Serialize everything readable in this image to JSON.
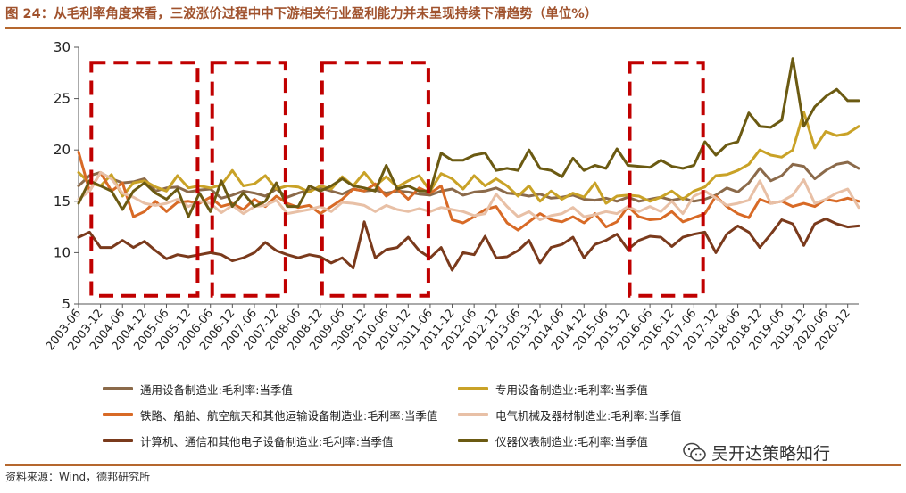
{
  "header": {
    "title": "图 24：从毛利率角度来看，三波涨价过程中中下游相关行业盈利能力并未呈现持续下滑趋势（单位%）"
  },
  "footer": {
    "source": "资料来源：Wind，德邦研究所",
    "watermark": "吴开达策略知行"
  },
  "chart_data": {
    "type": "line",
    "title": "",
    "xlabel": "",
    "ylabel": "",
    "ylim": [
      5,
      30
    ],
    "yticks": [
      5,
      10,
      15,
      20,
      25,
      30
    ],
    "grid": false,
    "legend_position": "bottom",
    "x": [
      "2003-06",
      "2003-09",
      "2003-12",
      "2004-03",
      "2004-06",
      "2004-09",
      "2004-12",
      "2005-03",
      "2005-06",
      "2005-09",
      "2005-12",
      "2006-03",
      "2006-06",
      "2006-09",
      "2006-12",
      "2007-03",
      "2007-06",
      "2007-09",
      "2007-12",
      "2008-03",
      "2008-06",
      "2008-09",
      "2008-12",
      "2009-03",
      "2009-06",
      "2009-09",
      "2009-12",
      "2010-03",
      "2010-06",
      "2010-09",
      "2010-12",
      "2011-03",
      "2011-06",
      "2011-09",
      "2011-12",
      "2012-03",
      "2012-06",
      "2012-09",
      "2012-12",
      "2013-03",
      "2013-06",
      "2013-09",
      "2013-12",
      "2014-03",
      "2014-06",
      "2014-09",
      "2014-12",
      "2015-03",
      "2015-06",
      "2015-09",
      "2015-12",
      "2016-03",
      "2016-06",
      "2016-09",
      "2016-12",
      "2017-03",
      "2017-06",
      "2017-09",
      "2017-12",
      "2018-03",
      "2018-06",
      "2018-09",
      "2018-12",
      "2019-03",
      "2019-06",
      "2019-09",
      "2019-12",
      "2020-03",
      "2020-06",
      "2020-09",
      "2020-12",
      "2021-03"
    ],
    "xticks": [
      "2003-06",
      "2003-12",
      "2004-06",
      "2004-12",
      "2005-06",
      "2005-12",
      "2006-06",
      "2006-12",
      "2007-06",
      "2007-12",
      "2008-06",
      "2008-12",
      "2009-06",
      "2009-12",
      "2010-06",
      "2010-12",
      "2011-06",
      "2011-12",
      "2012-06",
      "2012-12",
      "2013-06",
      "2013-12",
      "2014-06",
      "2014-12",
      "2015-06",
      "2015-12",
      "2016-06",
      "2016-12",
      "2017-06",
      "2017-12",
      "2018-06",
      "2018-12",
      "2019-06",
      "2019-12",
      "2020-06",
      "2020-12"
    ],
    "series": [
      {
        "name": "通用设备制造业:毛利率:当季值",
        "color": "#8b6a4a",
        "values": [
          16.5,
          17.5,
          17.8,
          17.2,
          16.8,
          16.9,
          17.2,
          16.0,
          16.3,
          16.4,
          15.9,
          16.1,
          16.2,
          15.3,
          15.6,
          16.0,
          15.8,
          15.5,
          16.2,
          15.4,
          15.8,
          16.1,
          16.3,
          16.0,
          15.7,
          16.2,
          16.0,
          16.1,
          15.8,
          16.0,
          15.9,
          15.7,
          15.6,
          16.0,
          16.2,
          15.6,
          15.9,
          16.0,
          16.3,
          15.8,
          15.7,
          15.5,
          15.7,
          15.3,
          15.4,
          15.6,
          15.2,
          15.1,
          15.3,
          15.0,
          15.4,
          15.0,
          15.2,
          15.4,
          15.1,
          15.3,
          15.0,
          15.2,
          15.6,
          16.3,
          15.9,
          16.8,
          18.2,
          17.0,
          17.5,
          18.6,
          18.4,
          17.2,
          18.0,
          18.6,
          18.8,
          18.2
        ]
      },
      {
        "name": "专用设备制造业:毛利率:当季值",
        "color": "#c9a227",
        "values": [
          17.8,
          16.8,
          16.5,
          17.6,
          15.5,
          16.8,
          17.0,
          16.4,
          16.0,
          17.5,
          16.3,
          16.5,
          16.3,
          16.6,
          18.0,
          16.5,
          16.7,
          17.5,
          16.2,
          16.5,
          16.4,
          15.9,
          16.5,
          16.2,
          17.4,
          16.5,
          17.8,
          16.5,
          17.4,
          16.4,
          17.0,
          17.5,
          16.0,
          17.7,
          17.2,
          16.2,
          17.5,
          16.5,
          17.2,
          16.5,
          15.5,
          16.5,
          15.0,
          16.0,
          15.2,
          15.8,
          15.4,
          16.8,
          14.8,
          15.5,
          15.6,
          15.5,
          15.0,
          15.4,
          16.0,
          15.2,
          16.0,
          16.4,
          17.5,
          17.6,
          18.0,
          18.6,
          20.0,
          19.5,
          19.3,
          20.0,
          23.7,
          20.2,
          21.8,
          21.4,
          21.6,
          22.3
        ]
      },
      {
        "name": "铁路、船舶、航空航天和其他运输设备制造业:毛利率:当季值",
        "color": "#d86a26",
        "values": [
          19.8,
          16.0,
          17.8,
          16.0,
          16.8,
          13.5,
          14.0,
          15.0,
          14.0,
          14.9,
          15.0,
          14.8,
          15.4,
          14.5,
          14.8,
          14.2,
          15.2,
          14.5,
          15.5,
          14.8,
          14.4,
          14.6,
          13.8,
          14.5,
          15.2,
          16.2,
          16.0,
          16.7,
          15.5,
          16.2,
          15.2,
          16.3,
          15.8,
          16.5,
          13.2,
          12.9,
          13.5,
          14.2,
          14.5,
          12.9,
          12.2,
          13.0,
          13.8,
          13.2,
          13.0,
          13.5,
          12.9,
          13.8,
          12.5,
          13.0,
          14.5,
          13.5,
          13.2,
          13.3,
          14.0,
          13.0,
          13.4,
          13.8,
          15.5,
          14.5,
          13.8,
          13.4,
          15.2,
          14.8,
          15.0,
          14.5,
          14.8,
          14.5,
          15.2,
          15.0,
          15.3,
          15.0
        ]
      },
      {
        "name": "电气机械及器材制造业:毛利率:当季值",
        "color": "#e8c0a6",
        "values": [
          15.2,
          16.0,
          17.8,
          17.2,
          15.8,
          15.4,
          14.8,
          14.6,
          14.8,
          15.2,
          14.5,
          15.0,
          14.8,
          13.9,
          14.6,
          13.8,
          14.5,
          14.6,
          15.1,
          13.8,
          14.0,
          14.2,
          14.5,
          14.0,
          14.9,
          14.8,
          14.6,
          14.0,
          14.6,
          14.2,
          14.0,
          14.3,
          14.0,
          14.4,
          14.2,
          14.0,
          13.6,
          13.8,
          15.7,
          14.5,
          13.5,
          14.0,
          13.2,
          13.6,
          13.8,
          14.4,
          13.5,
          13.7,
          14.0,
          13.8,
          14.5,
          14.0,
          14.5,
          14.0,
          15.0,
          13.8,
          15.5,
          16.0,
          15.3,
          14.6,
          14.8,
          15.1,
          17.0,
          14.8,
          15.0,
          15.6,
          17.1,
          14.8,
          15.2,
          15.8,
          16.2,
          14.4
        ]
      },
      {
        "name": "计算机、通信和其他电子设备制造业:毛利率:当季值",
        "color": "#7a3a1c",
        "values": [
          11.5,
          12.0,
          10.5,
          10.5,
          11.2,
          10.5,
          11.1,
          10.2,
          9.4,
          9.8,
          9.6,
          9.8,
          10.0,
          9.8,
          9.2,
          9.5,
          10.0,
          11.0,
          10.2,
          9.8,
          9.5,
          9.8,
          9.6,
          9.0,
          9.5,
          8.5,
          13.0,
          9.5,
          10.3,
          10.5,
          11.5,
          10.2,
          9.5,
          10.5,
          8.3,
          10.0,
          9.8,
          11.6,
          9.5,
          9.6,
          10.2,
          11.2,
          9.0,
          10.5,
          10.8,
          11.5,
          9.5,
          10.8,
          11.2,
          11.8,
          10.3,
          11.2,
          11.6,
          11.5,
          10.6,
          11.5,
          11.8,
          12.0,
          10.0,
          11.8,
          12.6,
          12.0,
          10.5,
          11.8,
          13.2,
          12.8,
          10.7,
          12.8,
          13.3,
          12.8,
          12.5,
          12.6
        ]
      },
      {
        "name": "仪器仪表制造业:毛利率:当季值",
        "color": "#6b5a12",
        "values": [
          14.8,
          17.0,
          16.5,
          16.0,
          14.2,
          16.0,
          16.8,
          15.8,
          15.2,
          16.2,
          13.5,
          15.8,
          14.0,
          17.0,
          14.5,
          15.8,
          14.5,
          15.0,
          16.8,
          14.5,
          14.5,
          16.5,
          16.0,
          16.5,
          17.2,
          16.5,
          16.3,
          16.0,
          18.5,
          16.2,
          16.5,
          16.0,
          16.0,
          19.7,
          19.0,
          19.0,
          19.5,
          19.7,
          18.0,
          18.2,
          18.0,
          20.0,
          18.2,
          18.0,
          17.4,
          19.2,
          18.0,
          18.5,
          18.2,
          20.1,
          18.5,
          18.4,
          18.3,
          19.0,
          18.4,
          18.2,
          18.5,
          20.8,
          19.5,
          20.5,
          20.8,
          23.6,
          22.3,
          22.2,
          22.9,
          28.9,
          22.3,
          24.2,
          25.2,
          25.9,
          24.8,
          24.8
        ]
      }
    ],
    "highlight_periods": [
      [
        "2003-09",
        "2006-03"
      ],
      [
        "2006-06",
        "2008-03"
      ],
      [
        "2008-12",
        "2011-06"
      ],
      [
        "2015-12",
        "2017-09"
      ]
    ]
  },
  "legend": [
    {
      "label": "通用设备制造业:毛利率:当季值",
      "color": "#8b6a4a"
    },
    {
      "label": "专用设备制造业:毛利率:当季值",
      "color": "#c9a227"
    },
    {
      "label": "铁路、船舶、航空航天和其他运输设备制造业:毛利率:当季值",
      "color": "#d86a26"
    },
    {
      "label": "电气机械及器材制造业:毛利率:当季值",
      "color": "#e8c0a6"
    },
    {
      "label": "计算机、通信和其他电子设备制造业:毛利率:当季值",
      "color": "#7a3a1c"
    },
    {
      "label": "仪器仪表制造业:毛利率:当季值",
      "color": "#6b5a12"
    }
  ]
}
